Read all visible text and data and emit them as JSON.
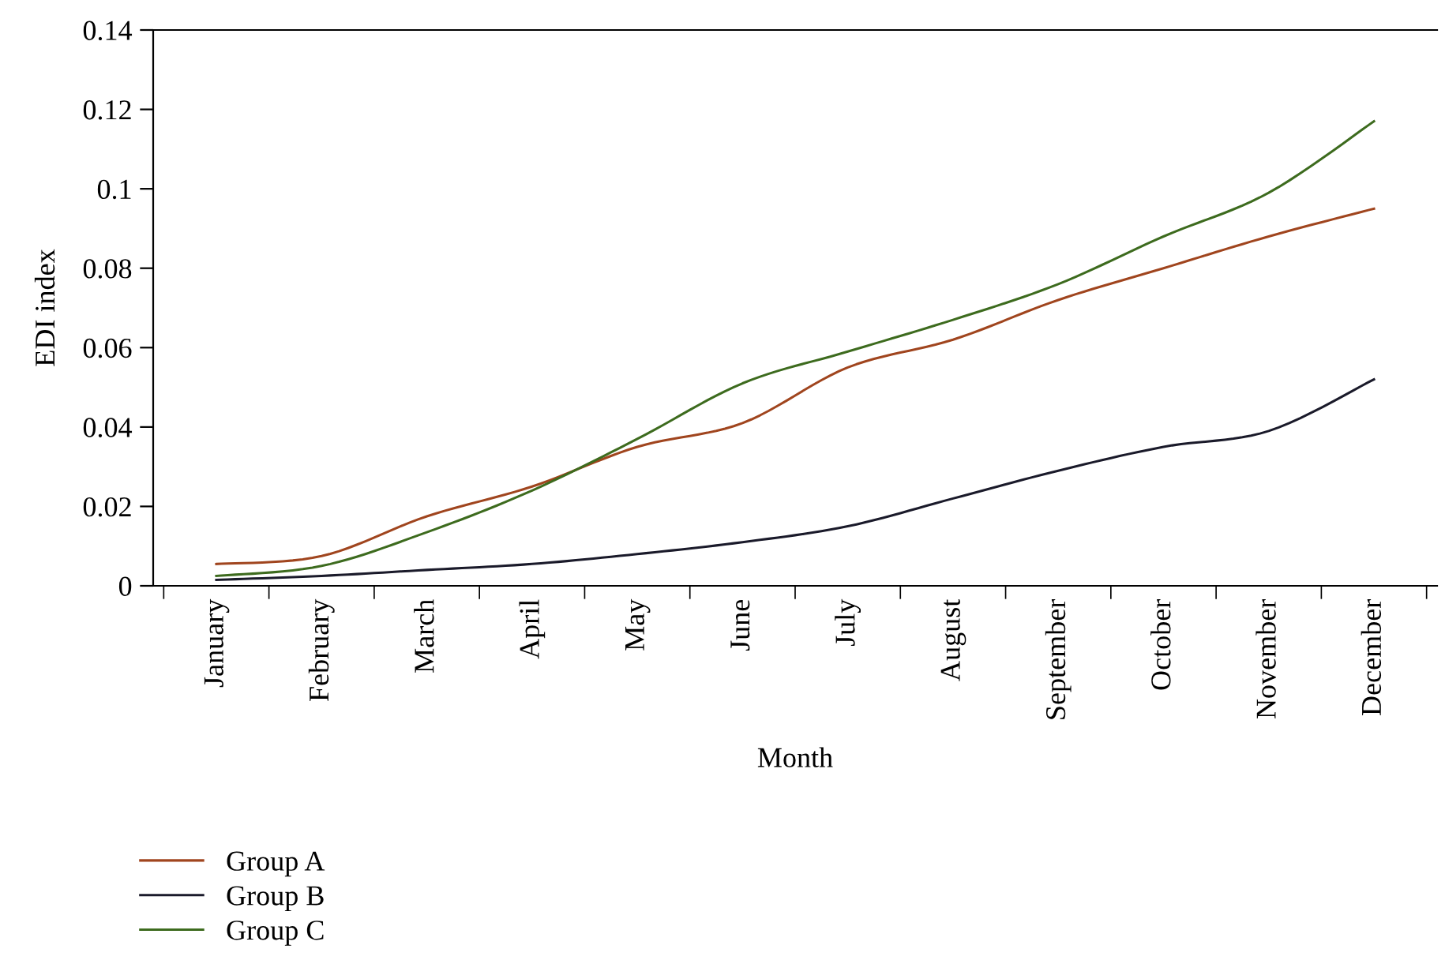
{
  "chart_data": {
    "type": "line",
    "xlabel": "Month",
    "ylabel": "EDI index",
    "categories": [
      "January",
      "February",
      "March",
      "April",
      "May",
      "June",
      "July",
      "August",
      "September",
      "October",
      "November",
      "December"
    ],
    "series": [
      {
        "name": "Group A",
        "color": "#a0451e",
        "values": [
          0.0055,
          0.0075,
          0.0175,
          0.025,
          0.035,
          0.041,
          0.055,
          0.062,
          0.072,
          0.08,
          0.088,
          0.095
        ]
      },
      {
        "name": "Group B",
        "color": "#1a1a2a",
        "values": [
          0.0015,
          0.0025,
          0.004,
          0.0055,
          0.008,
          0.011,
          0.015,
          0.022,
          0.029,
          0.035,
          0.039,
          0.052
        ]
      },
      {
        "name": "Group C",
        "color": "#3d6b1e",
        "values": [
          0.0025,
          0.005,
          0.0135,
          0.024,
          0.037,
          0.051,
          0.059,
          0.067,
          0.076,
          0.088,
          0.099,
          0.117
        ]
      }
    ],
    "ylim": [
      0,
      0.14
    ],
    "yticks": [
      0,
      0.02,
      0.04,
      0.06,
      0.08,
      0.1,
      0.12,
      0.14
    ],
    "grid": false,
    "legend": "bottom left",
    "marker": "none",
    "line_style": "solid"
  }
}
